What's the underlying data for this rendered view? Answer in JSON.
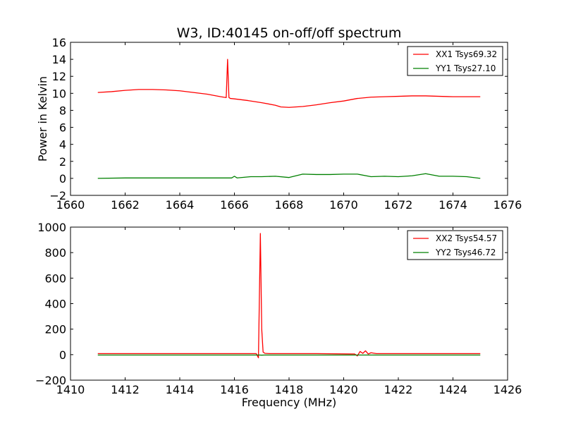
{
  "figure": {
    "title": "W3, ID:40145 on-off/off spectrum"
  },
  "chart_data": [
    {
      "type": "line",
      "title": "W3, ID:40145 on-off/off spectrum",
      "xlabel": "",
      "ylabel": "Power in Kelvin",
      "xlim": [
        1660,
        1676
      ],
      "ylim": [
        -2,
        16
      ],
      "xticks": [
        1660,
        1662,
        1664,
        1666,
        1668,
        1670,
        1672,
        1674,
        1676
      ],
      "yticks": [
        -2,
        0,
        2,
        4,
        6,
        8,
        10,
        12,
        14,
        16
      ],
      "grid": false,
      "legend_position": "top-right",
      "series": [
        {
          "name": "XX1 Tsys69.32",
          "color": "#ff0000",
          "x": [
            1661.0,
            1661.5,
            1662.0,
            1662.5,
            1663.0,
            1663.5,
            1664.0,
            1664.5,
            1665.0,
            1665.5,
            1665.7,
            1665.75,
            1665.8,
            1665.85,
            1666.0,
            1666.5,
            1667.0,
            1667.5,
            1667.7,
            1668.0,
            1668.5,
            1669.0,
            1669.5,
            1670.0,
            1670.5,
            1671.0,
            1671.5,
            1672.0,
            1672.5,
            1673.0,
            1673.5,
            1674.0,
            1674.5,
            1675.0
          ],
          "y": [
            10.1,
            10.2,
            10.35,
            10.45,
            10.45,
            10.4,
            10.3,
            10.1,
            9.9,
            9.6,
            9.5,
            14.0,
            9.5,
            9.4,
            9.35,
            9.15,
            8.9,
            8.6,
            8.4,
            8.35,
            8.45,
            8.65,
            8.9,
            9.1,
            9.4,
            9.55,
            9.6,
            9.65,
            9.7,
            9.7,
            9.65,
            9.6,
            9.6,
            9.6
          ]
        },
        {
          "name": "YY1 Tsys27.10",
          "color": "#008000",
          "x": [
            1661.0,
            1662.0,
            1663.0,
            1664.0,
            1665.0,
            1665.9,
            1666.0,
            1666.1,
            1666.6,
            1667.0,
            1667.5,
            1668.0,
            1668.5,
            1669.0,
            1669.5,
            1670.0,
            1670.5,
            1671.0,
            1671.5,
            1672.0,
            1672.5,
            1673.0,
            1673.5,
            1674.0,
            1674.5,
            1675.0
          ],
          "y": [
            0.0,
            0.05,
            0.05,
            0.05,
            0.05,
            0.05,
            0.25,
            0.05,
            0.2,
            0.2,
            0.25,
            0.1,
            0.5,
            0.45,
            0.45,
            0.5,
            0.5,
            0.2,
            0.25,
            0.2,
            0.3,
            0.55,
            0.25,
            0.25,
            0.2,
            0.0
          ]
        }
      ]
    },
    {
      "type": "line",
      "title": "",
      "xlabel": "Frequency (MHz)",
      "ylabel": "",
      "xlim": [
        1410,
        1426
      ],
      "ylim": [
        -200,
        1000
      ],
      "xticks": [
        1410,
        1412,
        1414,
        1416,
        1418,
        1420,
        1422,
        1424,
        1426
      ],
      "yticks": [
        -200,
        0,
        200,
        400,
        600,
        800,
        1000
      ],
      "grid": false,
      "legend_position": "top-right",
      "series": [
        {
          "name": "XX2 Tsys54.57",
          "color": "#ff0000",
          "x": [
            1411.0,
            1413.0,
            1415.0,
            1416.8,
            1416.88,
            1416.95,
            1417.0,
            1417.05,
            1417.12,
            1417.3,
            1419.0,
            1420.4,
            1420.5,
            1420.6,
            1420.7,
            1420.8,
            1420.9,
            1421.0,
            1421.2,
            1423.0,
            1425.0
          ],
          "y": [
            8,
            8,
            8,
            8,
            -25,
            950,
            200,
            20,
            10,
            8,
            8,
            5,
            -10,
            25,
            10,
            30,
            5,
            15,
            8,
            8,
            8
          ]
        },
        {
          "name": "YY2 Tsys46.72",
          "color": "#008000",
          "x": [
            1411.0,
            1416.9,
            1417.0,
            1417.1,
            1425.0
          ],
          "y": [
            -3,
            -3,
            -4,
            -3,
            -3
          ]
        }
      ]
    }
  ]
}
